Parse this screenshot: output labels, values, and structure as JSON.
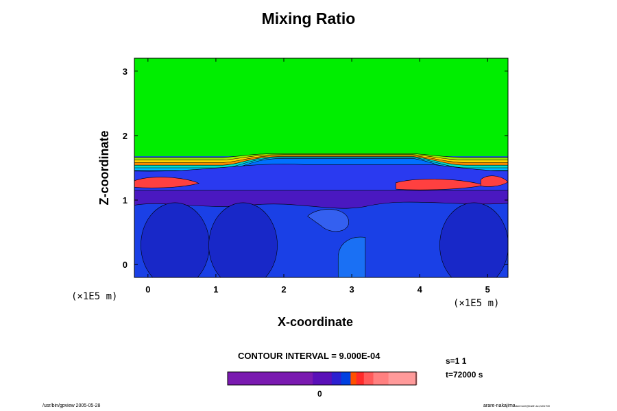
{
  "chart_data": {
    "type": "heatmap",
    "subtype": "filled-contour",
    "title": "Mixing Ratio",
    "xlabel": "X-coordinate",
    "ylabel": "Z-coordinate",
    "xlim": [
      -0.2,
      5.3
    ],
    "ylim": [
      -0.2,
      3.2
    ],
    "x_ticks": [
      "0",
      "1",
      "2",
      "3",
      "4",
      "5"
    ],
    "y_ticks": [
      "0",
      "1",
      "2",
      "3"
    ],
    "x_scale_label": "(×1E5  m)",
    "y_scale_label": "(×1E5  m)",
    "contour_interval": "CONTOUR INTERVAL = 9.000E-04",
    "colorbar_tick": "0",
    "colorbar_colors": [
      "#7a1ab0",
      "#7a1ab0",
      "#5a10b8",
      "#2c20d0",
      "#0040e0",
      "#ff5000",
      "#ff2a2a",
      "#ff5a5a",
      "#ff8080",
      "#ff9a9a"
    ],
    "regions": {
      "upper": {
        "color": "#00ee00",
        "z_range": [
          1.7,
          3.2
        ]
      },
      "bands": [
        "#9aee00",
        "#ffd400",
        "#ff8c00",
        "#00ddcc",
        "#00b8ff",
        "#0070ff"
      ],
      "inversion_layer": {
        "color": "#2a3af0",
        "z_range": [
          1.15,
          1.45
        ]
      },
      "plumes": {
        "color": "#ff4040",
        "locations_x": [
          0.3,
          4.3,
          5.0
        ],
        "z": 1.22
      },
      "mixed_layer": {
        "color": "#1a40e6",
        "z_range": [
          -0.2,
          1.05
        ]
      },
      "updraft": {
        "color": "#1a70f4",
        "x_range": [
          2.8,
          3.2
        ],
        "z_range": [
          -0.2,
          0.45
        ]
      },
      "eddies": {
        "color": "#1828c8",
        "centers_x": [
          0.4,
          1.4,
          4.8
        ],
        "z": 0.3
      }
    }
  },
  "run_info": {
    "s_label": "s=1 1",
    "t_label": "t=72000 s"
  },
  "footer": {
    "left": "/usr/bin/gpview 2005-05-28",
    "right": "arare-nakajima",
    "right_small": "dunmore@earth.sci,/c01700"
  }
}
